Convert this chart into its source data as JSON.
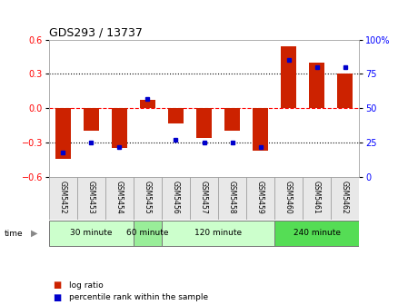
{
  "title": "GDS293 / 13737",
  "samples": [
    "GSM5452",
    "GSM5453",
    "GSM5454",
    "GSM5455",
    "GSM5456",
    "GSM5457",
    "GSM5458",
    "GSM5459",
    "GSM5460",
    "GSM5461",
    "GSM5462"
  ],
  "log_ratio": [
    -0.44,
    -0.2,
    -0.35,
    0.07,
    -0.13,
    -0.26,
    -0.2,
    -0.37,
    0.54,
    0.4,
    0.3
  ],
  "percentile_rank": [
    18,
    25,
    22,
    57,
    27,
    25,
    25,
    22,
    85,
    80,
    80
  ],
  "bar_color": "#cc2200",
  "dot_color": "#0000cc",
  "ylim_left": [
    -0.6,
    0.6
  ],
  "ylim_right": [
    0,
    100
  ],
  "yticks_left": [
    -0.6,
    -0.3,
    0,
    0.3,
    0.6
  ],
  "yticks_right": [
    0,
    25,
    50,
    75,
    100
  ],
  "ytick_labels_right": [
    "0",
    "25",
    "50",
    "75",
    "100%"
  ],
  "groups": [
    {
      "label": "30 minute",
      "start": 0,
      "end": 2,
      "color": "#ccffcc"
    },
    {
      "label": "60 minute",
      "start": 3,
      "end": 3,
      "color": "#99ee99"
    },
    {
      "label": "120 minute",
      "start": 4,
      "end": 7,
      "color": "#ccffcc"
    },
    {
      "label": "240 minute",
      "start": 8,
      "end": 10,
      "color": "#55dd55"
    }
  ],
  "time_label": "time",
  "legend_log_ratio": "log ratio",
  "legend_percentile": "percentile rank within the sample",
  "bg_color": "#ffffff",
  "bar_width": 0.55
}
